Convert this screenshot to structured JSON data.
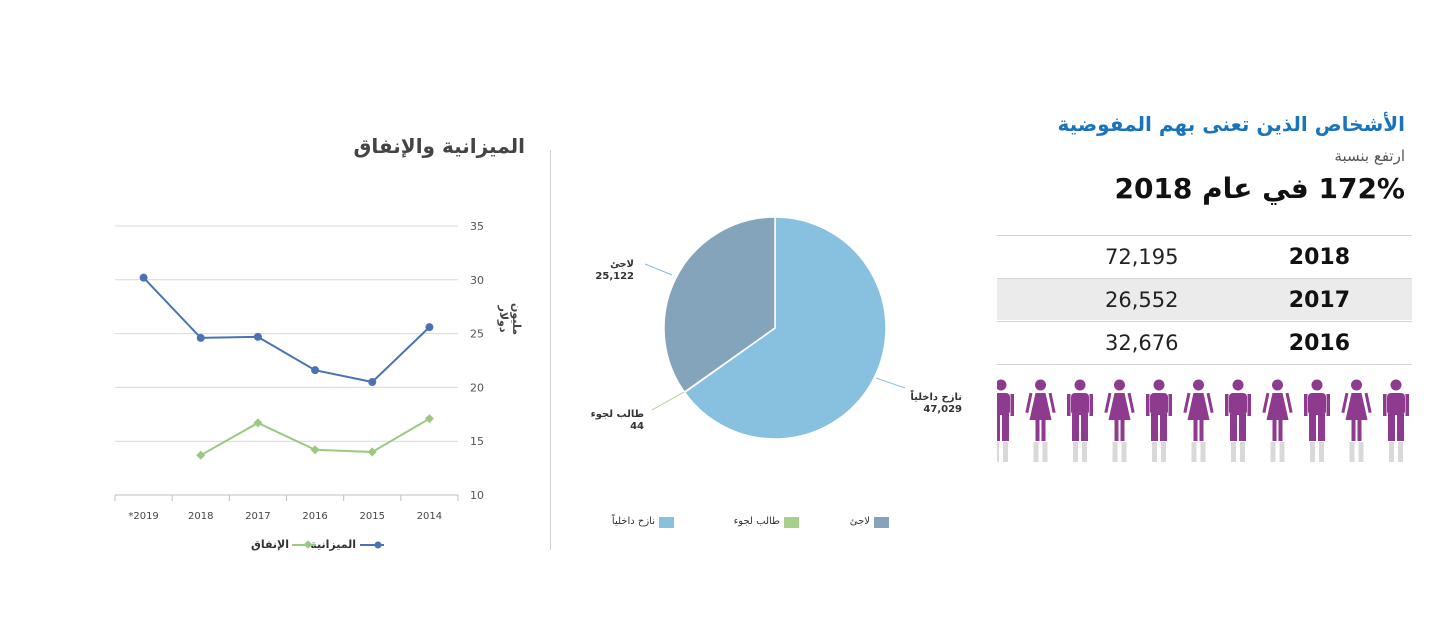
{
  "budget_chart": {
    "title": "الميزانية والإنفاق",
    "ylabel": "مليون دولار",
    "legend": {
      "budget": "الميزانية",
      "expenditure": "الإنفاق"
    }
  },
  "pie_chart": {
    "labels": {
      "refugee": "لاجئ",
      "asylum": "طالب لجوء",
      "idp": "نازح داخلياً"
    },
    "values_text": {
      "refugee": "25,122",
      "asylum": "44",
      "idp": "47,029"
    }
  },
  "persons_panel": {
    "title": "الأشخاص الذين تعنى بهم المفوضية",
    "rise_label": "ارتفع بنسبة",
    "rise_value": "172% في عام 2018",
    "rows": [
      {
        "year": "2018",
        "count": "72,195"
      },
      {
        "year": "2017",
        "count": "26,552"
      },
      {
        "year": "2016",
        "count": "32,676"
      }
    ],
    "colors": {
      "accent": "#1a74bd",
      "person": "#8e3a8f",
      "person_base": "#d9d9d9"
    }
  },
  "chart_data": [
    {
      "type": "line",
      "title": "الميزانية والإنفاق",
      "ylabel": "مليون دولار",
      "categories": [
        "*2019",
        "2018",
        "2017",
        "2016",
        "2015",
        "2014"
      ],
      "ylim": [
        10,
        35
      ],
      "yticks": [
        10,
        15,
        20,
        25,
        30,
        35
      ],
      "grid": true,
      "legend_position": "bottom",
      "series": [
        {
          "name": "الميزانية",
          "color": "#4a72b5",
          "marker": "circle",
          "values": [
            30.2,
            24.6,
            24.7,
            21.6,
            20.5,
            25.6
          ]
        },
        {
          "name": "الإنفاق",
          "color": "#9bc983",
          "marker": "diamond",
          "values": [
            null,
            13.7,
            16.7,
            14.2,
            14.0,
            17.1
          ]
        }
      ]
    },
    {
      "type": "pie",
      "labels": [
        "نازح داخلياً",
        "طالب لجوء",
        "لاجئ"
      ],
      "values": [
        47029,
        44,
        25122
      ],
      "colors": [
        "#88c0e0",
        "#a8d08d",
        "#84a4bb"
      ],
      "legend_position": "bottom"
    }
  ]
}
